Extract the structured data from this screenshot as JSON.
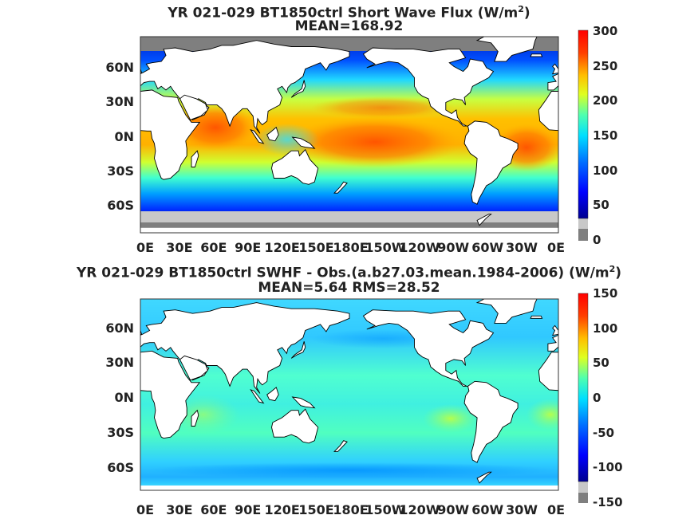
{
  "panels": [
    {
      "title_line1": "YR 021-029 BT1850ctrl  Short Wave Flux (W/m",
      "title_sup": "2",
      "title_close": ")",
      "title_line2": "MEAN=168.92",
      "lat_labels": [
        "60N",
        "30N",
        "0N",
        "30S",
        "60S"
      ],
      "lon_labels": [
        "0E",
        "30E",
        "60E",
        "90E",
        "120E",
        "150E",
        "180E",
        "150W",
        "120W",
        "90W",
        "60W",
        "30W",
        "0E"
      ],
      "colorbar": {
        "ticks": [
          "300",
          "250",
          "200",
          "150",
          "100",
          "50",
          "0"
        ],
        "min": 0,
        "max": 300
      }
    },
    {
      "title_line1": "YR 021-029 BT1850ctrl SWHF - Obs.(a.b27.03.mean.1984-2006) (W/m",
      "title_sup": "2",
      "title_close": ")",
      "title_line2": "MEAN=5.64 RMS=28.52",
      "lat_labels": [
        "60N",
        "30N",
        "0N",
        "30S",
        "60S"
      ],
      "lon_labels": [
        "0E",
        "30E",
        "60E",
        "90E",
        "120E",
        "150E",
        "180E",
        "150W",
        "120W",
        "90W",
        "60W",
        "30W",
        "0E"
      ],
      "colorbar": {
        "ticks": [
          "150",
          "100",
          "50",
          "0",
          "-50",
          "-100",
          "-150"
        ],
        "min": -150,
        "max": 150
      }
    }
  ],
  "colors": {
    "land": "#ffffff",
    "missing": "#7f7f7f",
    "seaice": "#c8c8c8",
    "coast": "#000000"
  },
  "colormap": [
    "#00008f",
    "#0000ff",
    "#006fff",
    "#00dfff",
    "#4fffaf",
    "#bfff3f",
    "#ffdf00",
    "#ff6f00",
    "#ff0000",
    "#8f0000"
  ]
}
